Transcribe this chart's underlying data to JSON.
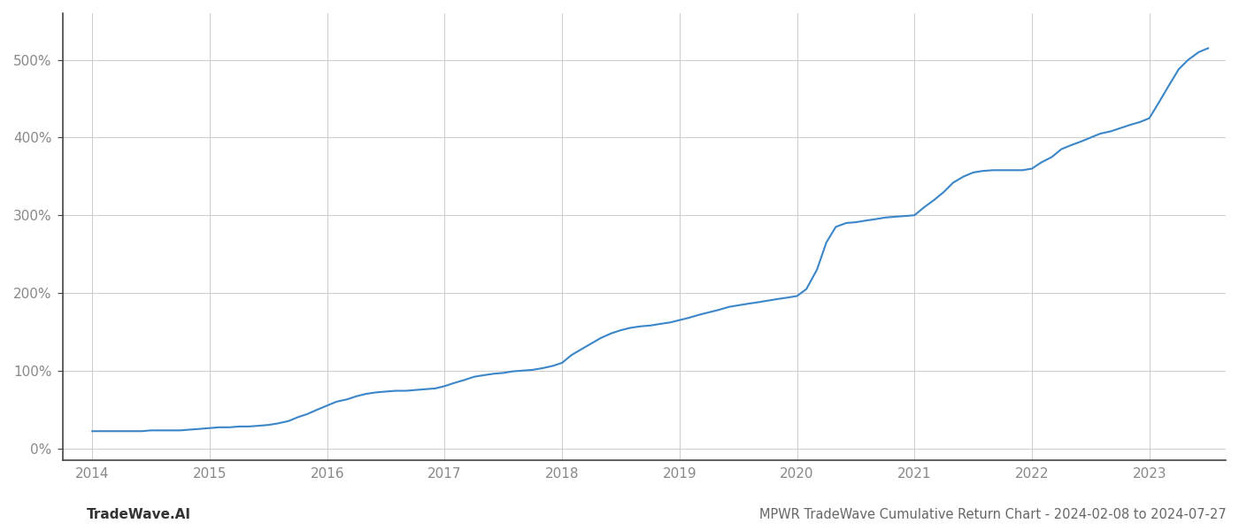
{
  "title": "MPWR TradeWave Cumulative Return Chart - 2024-02-08 to 2024-07-27",
  "watermark": "TradeWave.AI",
  "line_color": "#3a86c8",
  "background_color": "#ffffff",
  "grid_color": "#cccccc",
  "x_years": [
    2014.0,
    2014.08,
    2014.17,
    2014.25,
    2014.33,
    2014.42,
    2014.5,
    2014.58,
    2014.67,
    2014.75,
    2014.83,
    2014.92,
    2015.0,
    2015.08,
    2015.17,
    2015.25,
    2015.33,
    2015.42,
    2015.5,
    2015.58,
    2015.67,
    2015.75,
    2015.83,
    2015.92,
    2016.0,
    2016.08,
    2016.17,
    2016.25,
    2016.33,
    2016.42,
    2016.5,
    2016.58,
    2016.67,
    2016.75,
    2016.83,
    2016.92,
    2017.0,
    2017.08,
    2017.17,
    2017.25,
    2017.33,
    2017.42,
    2017.5,
    2017.58,
    2017.67,
    2017.75,
    2017.83,
    2017.92,
    2018.0,
    2018.08,
    2018.17,
    2018.25,
    2018.33,
    2018.42,
    2018.5,
    2018.58,
    2018.67,
    2018.75,
    2018.83,
    2018.92,
    2019.0,
    2019.08,
    2019.17,
    2019.25,
    2019.33,
    2019.42,
    2019.5,
    2019.58,
    2019.67,
    2019.75,
    2019.83,
    2019.92,
    2020.0,
    2020.08,
    2020.17,
    2020.25,
    2020.33,
    2020.42,
    2020.5,
    2020.58,
    2020.67,
    2020.75,
    2020.83,
    2020.92,
    2021.0,
    2021.08,
    2021.17,
    2021.25,
    2021.33,
    2021.42,
    2021.5,
    2021.58,
    2021.67,
    2021.75,
    2021.83,
    2021.92,
    2022.0,
    2022.08,
    2022.17,
    2022.25,
    2022.33,
    2022.42,
    2022.5,
    2022.58,
    2022.67,
    2022.75,
    2022.83,
    2022.92,
    2023.0,
    2023.08,
    2023.17,
    2023.25,
    2023.33,
    2023.42,
    2023.5
  ],
  "y_values": [
    22,
    22,
    22,
    22,
    22,
    22,
    23,
    23,
    23,
    23,
    24,
    25,
    26,
    27,
    27,
    28,
    28,
    29,
    30,
    32,
    35,
    40,
    44,
    50,
    55,
    60,
    63,
    67,
    70,
    72,
    73,
    74,
    74,
    75,
    76,
    77,
    80,
    84,
    88,
    92,
    94,
    96,
    97,
    99,
    100,
    101,
    103,
    106,
    110,
    120,
    128,
    135,
    142,
    148,
    152,
    155,
    157,
    158,
    160,
    162,
    165,
    168,
    172,
    175,
    178,
    182,
    184,
    186,
    188,
    190,
    192,
    194,
    196,
    205,
    230,
    265,
    285,
    290,
    291,
    293,
    295,
    297,
    298,
    299,
    300,
    310,
    320,
    330,
    342,
    350,
    355,
    357,
    358,
    358,
    358,
    358,
    360,
    368,
    375,
    385,
    390,
    395,
    400,
    405,
    408,
    412,
    416,
    420,
    425,
    445,
    468,
    488,
    500,
    510,
    515
  ],
  "yticks": [
    0,
    100,
    200,
    300,
    400,
    500
  ],
  "ytick_labels": [
    "0%",
    "100%",
    "200%",
    "300%",
    "400%",
    "500%"
  ],
  "xticks": [
    2014,
    2015,
    2016,
    2017,
    2018,
    2019,
    2020,
    2021,
    2022,
    2023
  ],
  "xtick_labels": [
    "2014",
    "2015",
    "2016",
    "2017",
    "2018",
    "2019",
    "2020",
    "2021",
    "2022",
    "2023"
  ],
  "xlim": [
    2013.75,
    2023.65
  ],
  "ylim": [
    -15,
    560
  ],
  "line_width": 1.5,
  "title_fontsize": 10.5,
  "tick_fontsize": 11,
  "watermark_fontsize": 11,
  "axis_color": "#999999",
  "tick_color": "#888888",
  "spine_color": "#444444"
}
